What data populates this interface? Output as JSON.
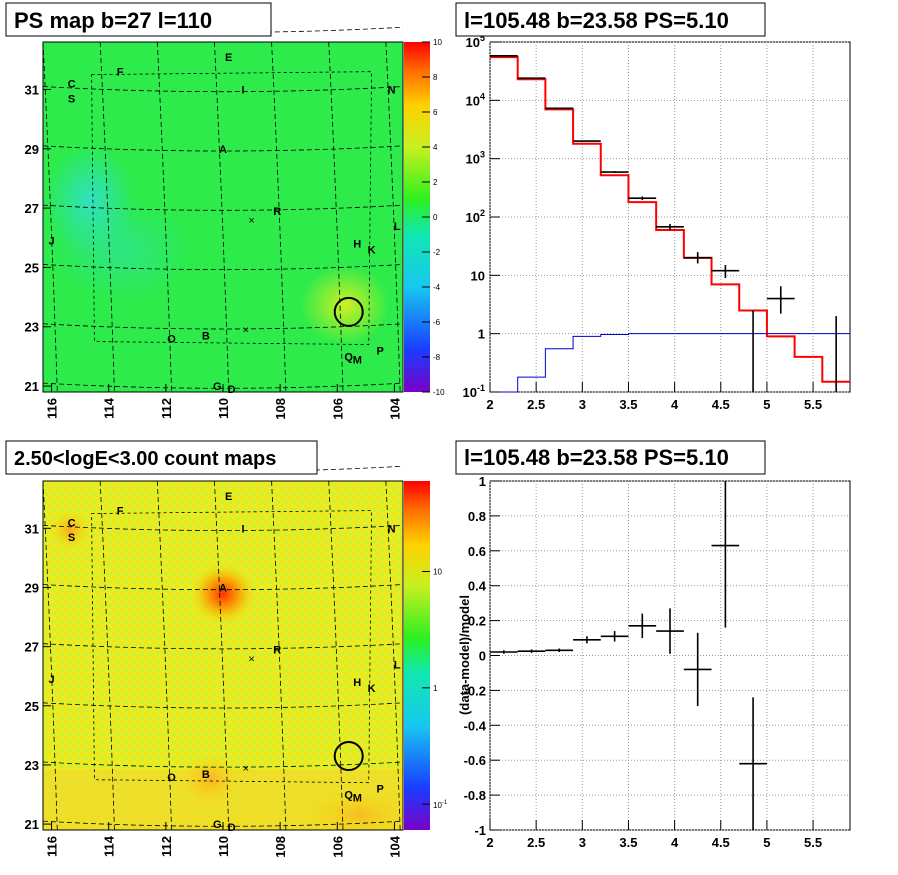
{
  "chart_data": [
    {
      "type": "heatmap",
      "title": "PS map b=27 l=110",
      "xticks": [
        "116",
        "114",
        "112",
        "110",
        "108",
        "106",
        "104"
      ],
      "yticks": [
        "31",
        "29",
        "27",
        "25",
        "23",
        "21"
      ],
      "xlim": [
        116.3,
        103.7
      ],
      "ylim": [
        20.8,
        32.6
      ],
      "colorbar": {
        "scale": "linear",
        "range": [
          -10,
          10
        ],
        "ticks": [
          "10",
          "8",
          "6",
          "4",
          "2",
          "0",
          "-2",
          "-4",
          "-6",
          "-8",
          "-10"
        ]
      },
      "marker_circle": {
        "l": 105.6,
        "b": 23.5
      },
      "source_labels": [
        {
          "text": "E",
          "l": 109.8,
          "b": 32.1
        },
        {
          "text": "F",
          "l": 113.6,
          "b": 31.6
        },
        {
          "text": "I",
          "l": 109.3,
          "b": 31.0
        },
        {
          "text": "C",
          "l": 115.3,
          "b": 31.2
        },
        {
          "text": "S",
          "l": 115.3,
          "b": 30.7
        },
        {
          "text": "N",
          "l": 104.1,
          "b": 31.0
        },
        {
          "text": "A",
          "l": 110.0,
          "b": 29.0
        },
        {
          "text": "R",
          "l": 108.1,
          "b": 26.9
        },
        {
          "text": "J",
          "l": 116.0,
          "b": 25.9
        },
        {
          "text": "L",
          "l": 103.9,
          "b": 26.4
        },
        {
          "text": "H",
          "l": 105.3,
          "b": 25.8
        },
        {
          "text": "K",
          "l": 104.8,
          "b": 25.6
        },
        {
          "text": "O",
          "l": 111.8,
          "b": 22.6
        },
        {
          "text": "B",
          "l": 110.6,
          "b": 22.7
        },
        {
          "text": "Q",
          "l": 105.6,
          "b": 22.0
        },
        {
          "text": "M",
          "l": 105.3,
          "b": 21.9
        },
        {
          "text": "P",
          "l": 104.5,
          "b": 22.2
        },
        {
          "text": "G",
          "l": 110.2,
          "b": 21.0
        },
        {
          "text": "D",
          "l": 109.7,
          "b": 20.9
        }
      ]
    },
    {
      "type": "line",
      "title": "l=105.48 b=23.58 PS=5.10",
      "yscale": "log",
      "xlim": [
        2,
        5.9
      ],
      "ylim": [
        0.1,
        100000
      ],
      "xticks": [
        "2",
        "2.5",
        "3",
        "3.5",
        "4",
        "4.5",
        "5",
        "5.5"
      ],
      "yticks": [
        {
          "v": 0.1,
          "base": "10",
          "exp": "-1"
        },
        {
          "v": 1,
          "label": "1"
        },
        {
          "v": 10,
          "label": "10"
        },
        {
          "v": 100,
          "base": "10",
          "exp": "2"
        },
        {
          "v": 1000,
          "base": "10",
          "exp": "3"
        },
        {
          "v": 10000,
          "base": "10",
          "exp": "4"
        },
        {
          "v": 100000,
          "base": "10",
          "exp": "5"
        }
      ],
      "bin_edges": [
        2.0,
        2.3,
        2.6,
        2.9,
        3.2,
        3.5,
        3.8,
        4.1,
        4.4,
        4.7,
        5.0,
        5.3,
        5.6,
        5.9
      ],
      "series": [
        {
          "color": "#ff0000",
          "values": [
            55000,
            23000,
            7000,
            1800,
            520,
            180,
            60,
            20,
            7,
            2.5,
            0.9,
            0.4,
            0.15
          ]
        },
        {
          "color": "#0000cc",
          "values": [
            0.1,
            0.18,
            0.55,
            0.9,
            0.97,
            1,
            1,
            1,
            1,
            1,
            1,
            1,
            1
          ]
        }
      ],
      "data_points": [
        {
          "x": 2.15,
          "y": 58000,
          "xerr": 0.15,
          "ylo": 57000,
          "yhi": 59000
        },
        {
          "x": 2.45,
          "y": 24000,
          "xerr": 0.15,
          "ylo": 23500,
          "yhi": 24500
        },
        {
          "x": 2.75,
          "y": 7300,
          "xerr": 0.15,
          "ylo": 7200,
          "yhi": 7400
        },
        {
          "x": 3.05,
          "y": 2000,
          "xerr": 0.15,
          "ylo": 1950,
          "yhi": 2050
        },
        {
          "x": 3.35,
          "y": 590,
          "xerr": 0.15,
          "ylo": 570,
          "yhi": 610
        },
        {
          "x": 3.65,
          "y": 210,
          "xerr": 0.15,
          "ylo": 195,
          "yhi": 225
        },
        {
          "x": 3.95,
          "y": 68,
          "xerr": 0.15,
          "ylo": 60,
          "yhi": 76
        },
        {
          "x": 4.25,
          "y": 20,
          "xerr": 0.15,
          "ylo": 16,
          "yhi": 25
        },
        {
          "x": 4.55,
          "y": 12,
          "xerr": 0.15,
          "ylo": 9,
          "yhi": 15
        },
        {
          "x": 4.85,
          "y": 1,
          "xerr": 0,
          "ylo": 0.1,
          "yhi": 2.5
        },
        {
          "x": 5.15,
          "y": 4,
          "xerr": 0.15,
          "ylo": 2.2,
          "yhi": 6.5
        },
        {
          "x": 5.75,
          "y": 1,
          "xerr": 0,
          "ylo": 0.1,
          "yhi": 2
        }
      ]
    },
    {
      "type": "heatmap",
      "title": "2.50<logE<3.00 count maps",
      "xticks": [
        "116",
        "114",
        "112",
        "110",
        "108",
        "106",
        "104"
      ],
      "yticks": [
        "31",
        "29",
        "27",
        "25",
        "23",
        "21"
      ],
      "xlim": [
        116.3,
        103.7
      ],
      "ylim": [
        20.8,
        32.6
      ],
      "colorbar": {
        "scale": "log",
        "range": [
          0.06,
          60
        ],
        "ticks": [
          {
            "v": 10,
            "label": "10"
          },
          {
            "v": 1,
            "label": "1"
          },
          {
            "v": 0.1,
            "base": "10",
            "exp": "-1"
          }
        ]
      },
      "marker_circle": {
        "l": 105.6,
        "b": 23.3
      }
    },
    {
      "type": "scatter",
      "title": "l=105.48 b=23.58 PS=5.10",
      "ylabel": "(data-model)/model",
      "xlim": [
        2,
        5.9
      ],
      "ylim": [
        -1,
        1
      ],
      "xticks": [
        "2",
        "2.5",
        "3",
        "3.5",
        "4",
        "4.5",
        "5",
        "5.5"
      ],
      "yticks": [
        "1",
        "0.8",
        "0.6",
        "0.4",
        "0.2",
        "0",
        "-0.2",
        "-0.4",
        "-0.6",
        "-0.8",
        "-1"
      ],
      "data_points": [
        {
          "x": 2.15,
          "y": 0.02,
          "xerr": 0.15,
          "yerr": 0.01
        },
        {
          "x": 2.45,
          "y": 0.025,
          "xerr": 0.15,
          "yerr": 0.01
        },
        {
          "x": 2.75,
          "y": 0.03,
          "xerr": 0.15,
          "yerr": 0.01
        },
        {
          "x": 3.05,
          "y": 0.09,
          "xerr": 0.15,
          "yerr": 0.02
        },
        {
          "x": 3.35,
          "y": 0.11,
          "xerr": 0.15,
          "yerr": 0.03
        },
        {
          "x": 3.65,
          "y": 0.17,
          "xerr": 0.15,
          "yerr": 0.07
        },
        {
          "x": 3.95,
          "y": 0.14,
          "xerr": 0.15,
          "yerr": 0.13
        },
        {
          "x": 4.25,
          "y": -0.08,
          "xerr": 0.15,
          "yerr": 0.21
        },
        {
          "x": 4.55,
          "y": 0.63,
          "xerr": 0.15,
          "yerr": 0.47
        },
        {
          "x": 4.85,
          "y": -0.62,
          "xerr": 0.15,
          "yerr": 0.38
        }
      ]
    }
  ]
}
